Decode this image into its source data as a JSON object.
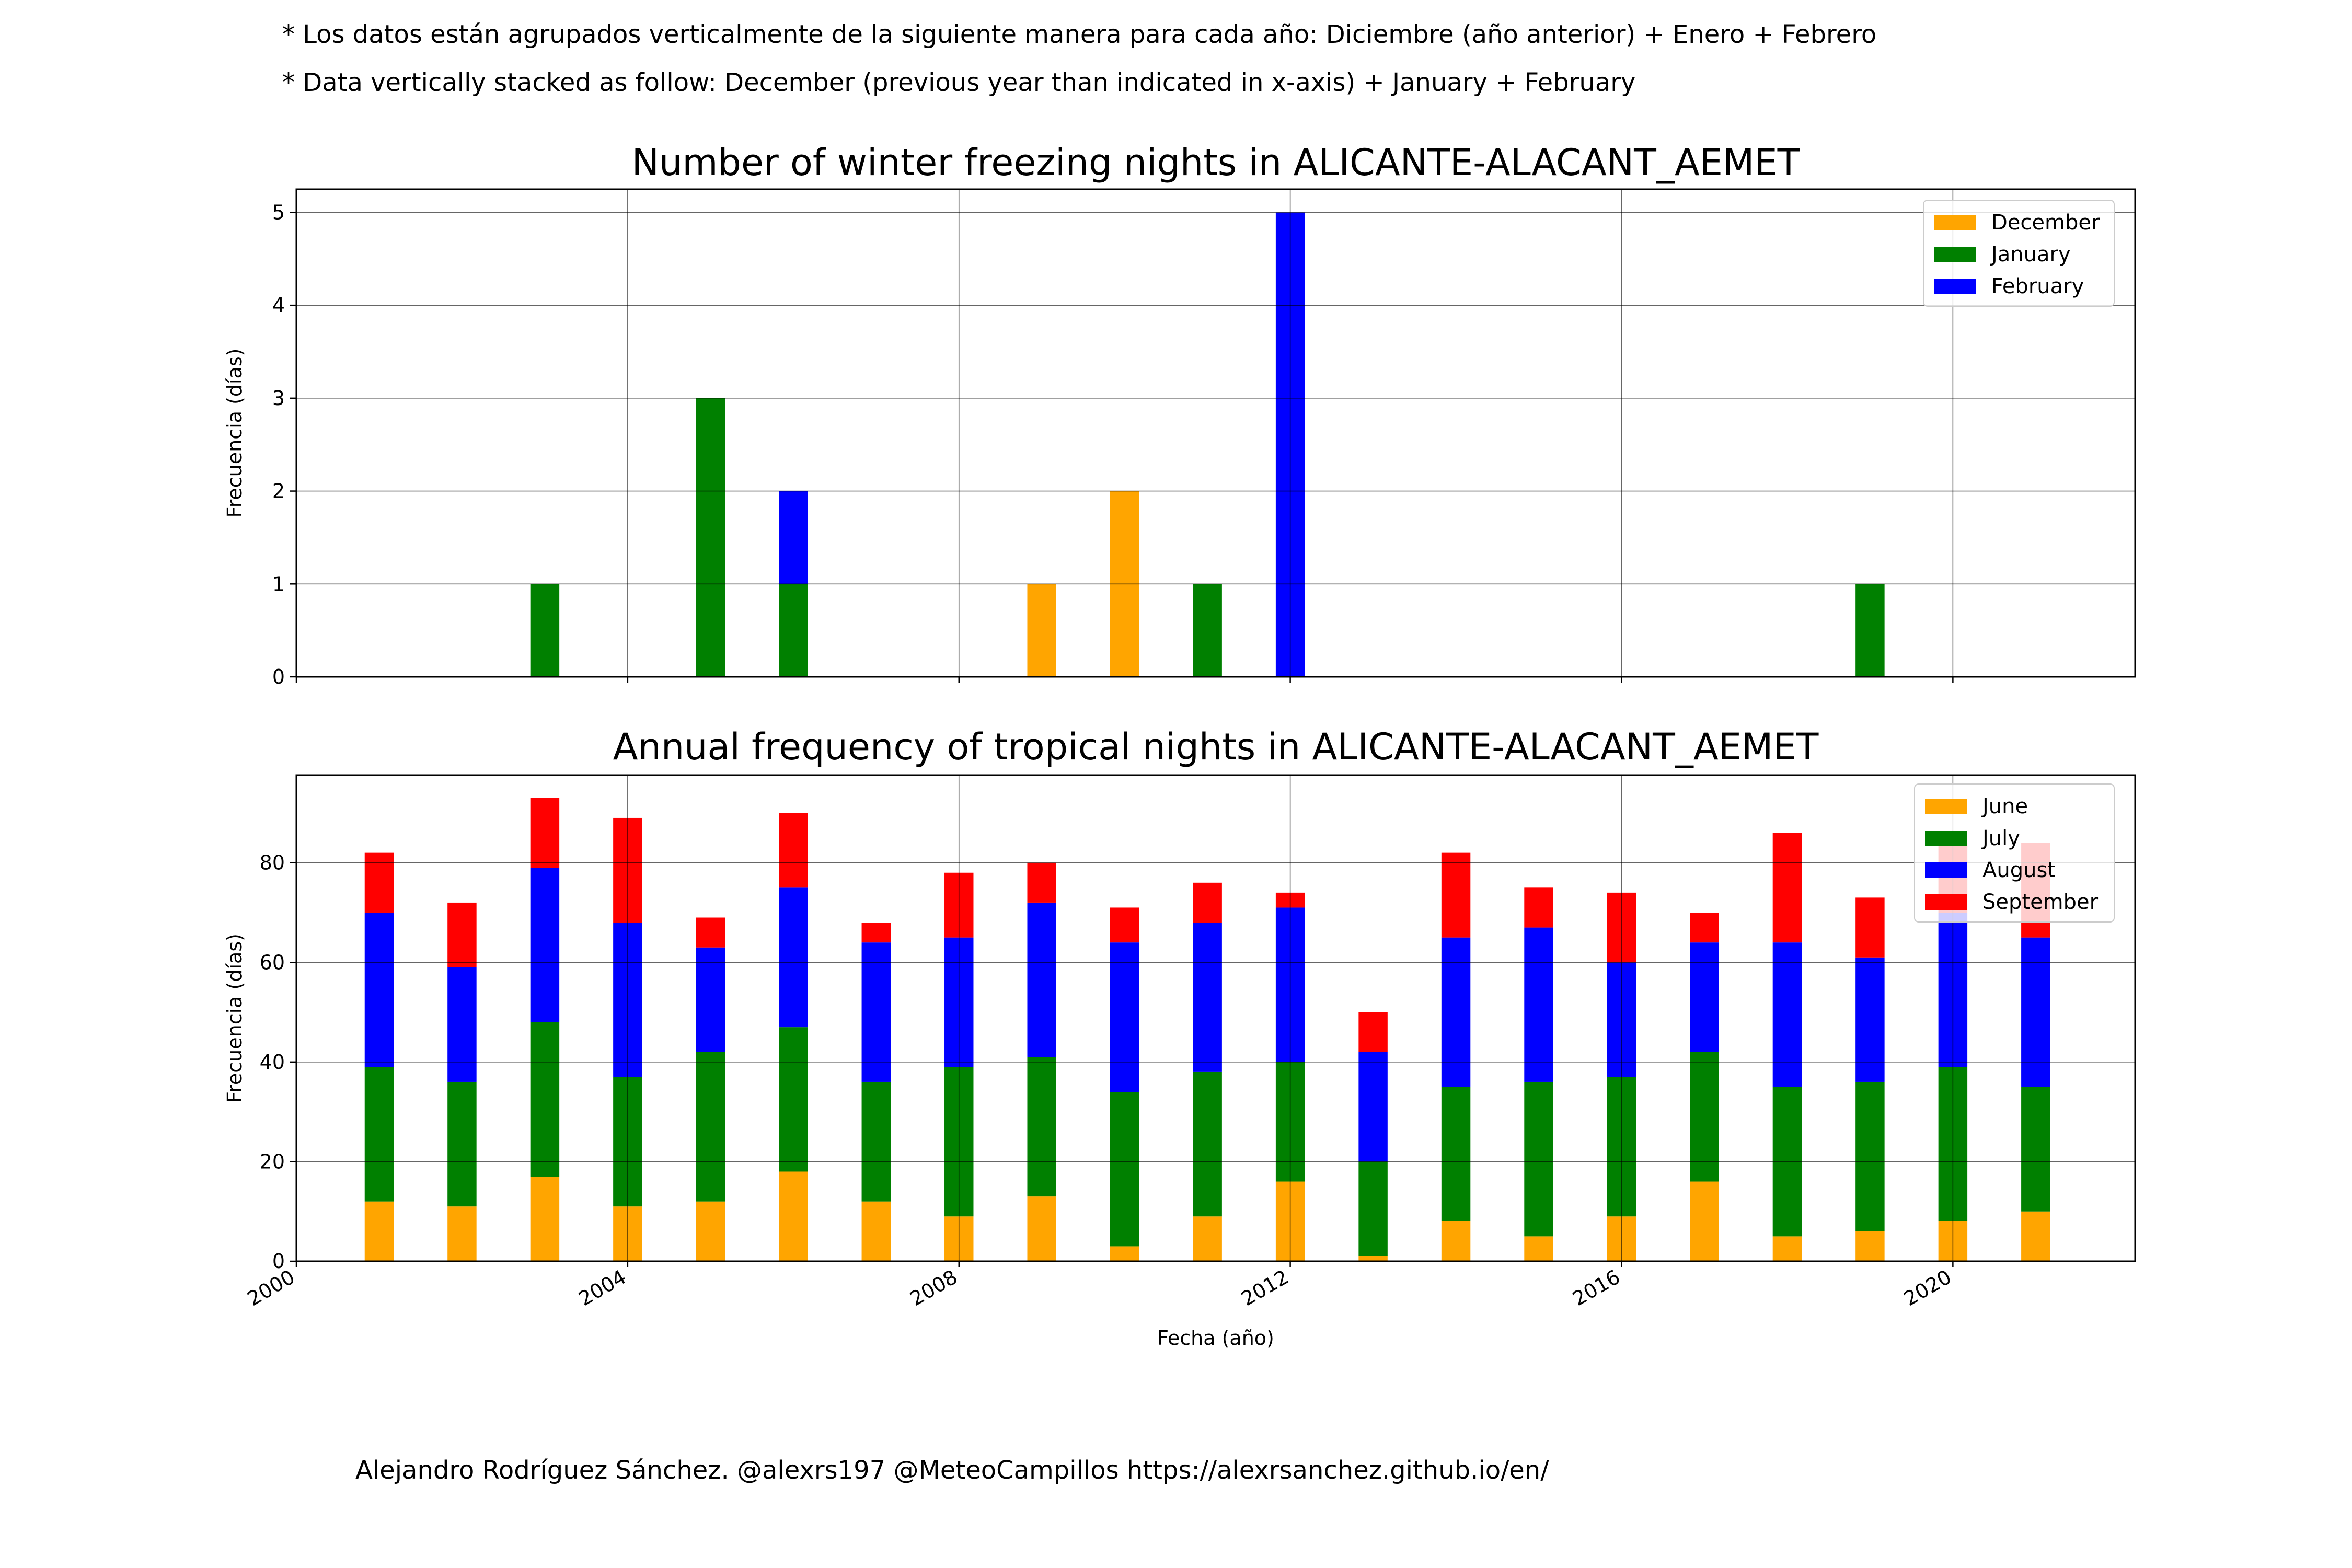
{
  "notes": {
    "line1": "* Los datos están agrupados verticalmente de la siguiente manera para cada año: Diciembre (año anterior) + Enero  + Febrero",
    "line2": "* Data vertically stacked as follow: December (previous year than indicated in x-axis) + January  + February"
  },
  "footer": "Alejandro Rodríguez Sánchez. @alexrs197 @MeteoCampillos   https://alexrsanchez.github.io/en/",
  "colors": {
    "orange": "#FFA500",
    "green": "#008000",
    "blue": "#0000FF",
    "red": "#FF0000"
  },
  "chart_data": [
    {
      "type": "bar",
      "stacked": true,
      "title": "Number of winter freezing nights in ALICANTE-ALACANT_AEMET",
      "xlabel": "",
      "ylabel": "Frecuencia (días)",
      "x": [
        2001,
        2002,
        2003,
        2004,
        2005,
        2006,
        2007,
        2008,
        2009,
        2010,
        2011,
        2012,
        2013,
        2014,
        2015,
        2016,
        2017,
        2018,
        2019,
        2020,
        2021
      ],
      "xlim": [
        2000,
        2022.2
      ],
      "ylim": [
        0,
        5.25
      ],
      "yticks": [
        0,
        1,
        2,
        3,
        4,
        5
      ],
      "xticks": [
        2000,
        2004,
        2008,
        2012,
        2016,
        2020
      ],
      "grid": true,
      "legend_position": "top-right",
      "series": [
        {
          "name": "December",
          "color": "#FFA500",
          "values": [
            0,
            0,
            0,
            0,
            0,
            0,
            0,
            0,
            1,
            2,
            0,
            0,
            0,
            0,
            0,
            0,
            0,
            0,
            0,
            0,
            0
          ]
        },
        {
          "name": "January",
          "color": "#008000",
          "values": [
            0,
            0,
            1,
            0,
            3,
            1,
            0,
            0,
            0,
            0,
            1,
            0,
            0,
            0,
            0,
            0,
            0,
            0,
            1,
            0,
            0
          ]
        },
        {
          "name": "February",
          "color": "#0000FF",
          "values": [
            0,
            0,
            0,
            0,
            0,
            1,
            0,
            0,
            0,
            0,
            0,
            5,
            0,
            0,
            0,
            0,
            0,
            0,
            0,
            0,
            0
          ]
        }
      ]
    },
    {
      "type": "bar",
      "stacked": true,
      "title": "Annual frequency of tropical nights in ALICANTE-ALACANT_AEMET",
      "xlabel": "Fecha (año)",
      "ylabel": "Frecuencia (días)",
      "x": [
        2001,
        2002,
        2003,
        2004,
        2005,
        2006,
        2007,
        2008,
        2009,
        2010,
        2011,
        2012,
        2013,
        2014,
        2015,
        2016,
        2017,
        2018,
        2019,
        2020,
        2021
      ],
      "xlim": [
        2000,
        2022.2
      ],
      "ylim": [
        0,
        97.6
      ],
      "yticks": [
        0,
        20,
        40,
        60,
        80
      ],
      "xticks": [
        2000,
        2004,
        2008,
        2012,
        2016,
        2020
      ],
      "grid": true,
      "legend_position": "top-right",
      "series": [
        {
          "name": "June",
          "color": "#FFA500",
          "values": [
            12,
            11,
            17,
            11,
            12,
            18,
            12,
            9,
            13,
            3,
            9,
            16,
            1,
            8,
            5,
            9,
            16,
            5,
            6,
            8,
            10
          ]
        },
        {
          "name": "July",
          "color": "#008000",
          "values": [
            27,
            25,
            31,
            26,
            30,
            29,
            24,
            30,
            28,
            31,
            29,
            24,
            19,
            27,
            31,
            28,
            26,
            30,
            30,
            31,
            25
          ]
        },
        {
          "name": "August",
          "color": "#0000FF",
          "values": [
            31,
            23,
            31,
            31,
            21,
            28,
            28,
            26,
            31,
            30,
            30,
            31,
            22,
            30,
            31,
            23,
            22,
            29,
            25,
            31,
            30
          ]
        },
        {
          "name": "September",
          "color": "#FF0000",
          "values": [
            12,
            13,
            14,
            21,
            6,
            15,
            4,
            13,
            8,
            7,
            8,
            3,
            8,
            17,
            8,
            14,
            6,
            22,
            12,
            14,
            19
          ]
        }
      ]
    }
  ]
}
